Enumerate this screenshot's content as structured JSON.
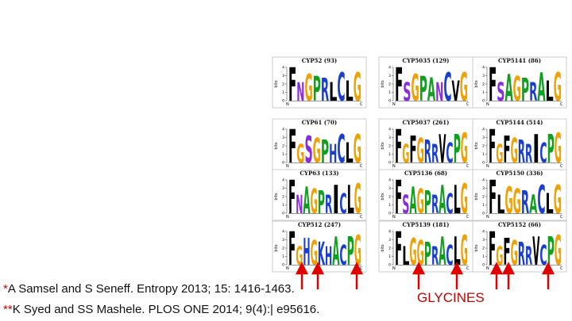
{
  "panels": [
    {
      "title": "CYP52 (93)",
      "logo": "FNGPRLCLG"
    },
    {
      "title": "CYP5035 (129)",
      "logo": "FSGPANCVG"
    },
    {
      "title": "CYP5141 (86)",
      "logo": "FSAGPRALG"
    },
    {
      "title": "CYP61 (70)",
      "logo": "FGSGPHCLG"
    },
    {
      "title": "CYP5037 (261)",
      "logo": "FGFGRRVCPG"
    },
    {
      "title": "CYP5144 (514)",
      "logo": "FGFGRRICPG"
    },
    {
      "title": "CYP63 (133)",
      "logo": "FNAGPRICLG"
    },
    {
      "title": "CYP5136 (68)",
      "logo": "FSAGPRACLG"
    },
    {
      "title": "CYP5150 (336)",
      "logo": "FLGGRACLG"
    },
    {
      "title": "CYP512 (247)",
      "logo": "FGHGKHACPG"
    },
    {
      "title": "CYP5139 (181)",
      "logo": "FLGGPRACLG"
    },
    {
      "title": "CYP5152 (66)",
      "logo": "FGFGRRVCPG"
    }
  ],
  "logo_axis": {
    "label": "bits",
    "ticks": [
      0,
      1,
      2,
      3,
      4
    ],
    "start": "N",
    "end": "C"
  },
  "references": [
    {
      "marker": "*",
      "text": "A Samsel and S Seneff. Entropy 2013; 15: 1416-1463."
    },
    {
      "marker": "**",
      "text": "K Syed and SS Mashele. PLOS ONE 2014; 9(4):| e95616."
    }
  ],
  "callout": "GLYCINES"
}
